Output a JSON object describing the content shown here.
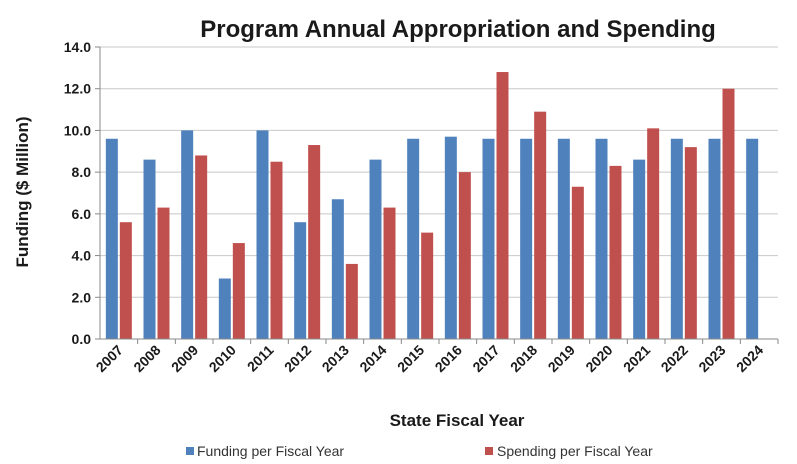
{
  "chart_data": {
    "type": "bar",
    "title": "Program Annual Appropriation and Spending",
    "xlabel": "State Fiscal Year",
    "ylabel": "Funding ($ Million)",
    "ylim": [
      0,
      14
    ],
    "yticks": [
      "0.0",
      "2.0",
      "4.0",
      "6.0",
      "8.0",
      "10.0",
      "12.0",
      "14.0"
    ],
    "grid": true,
    "legend_position": "bottom",
    "categories": [
      "2007",
      "2008",
      "2009",
      "2010",
      "2011",
      "2012",
      "2013",
      "2014",
      "2015",
      "2016",
      "2017",
      "2018",
      "2019",
      "2020",
      "2021",
      "2022",
      "2023",
      "2024"
    ],
    "series": [
      {
        "name": "Funding per Fiscal Year",
        "color": "#4f81bd",
        "values": [
          9.6,
          8.6,
          10.0,
          2.9,
          10.0,
          5.6,
          6.7,
          8.6,
          9.6,
          9.7,
          9.6,
          9.6,
          9.6,
          9.6,
          8.6,
          9.6,
          9.6,
          9.6
        ]
      },
      {
        "name": "Spending per Fiscal Year",
        "color": "#c0504d",
        "values": [
          5.6,
          6.3,
          8.8,
          4.6,
          8.5,
          9.3,
          3.6,
          6.3,
          5.1,
          8.0,
          12.8,
          10.9,
          7.3,
          8.3,
          10.1,
          9.2,
          12.0,
          null
        ]
      }
    ]
  }
}
